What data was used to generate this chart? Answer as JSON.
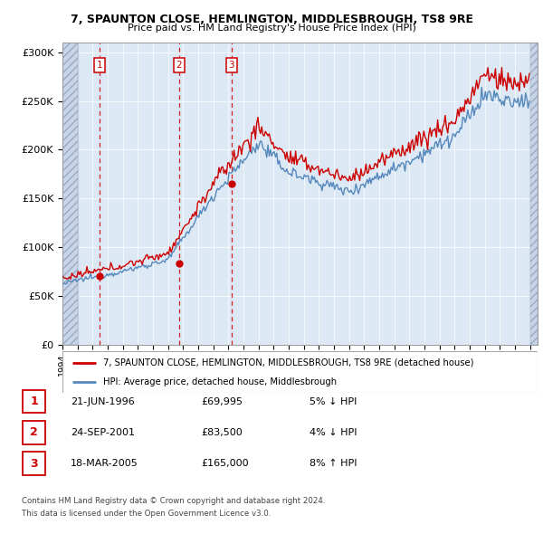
{
  "title1": "7, SPAUNTON CLOSE, HEMLINGTON, MIDDLESBROUGH, TS8 9RE",
  "title2": "Price paid vs. HM Land Registry's House Price Index (HPI)",
  "ylim": [
    0,
    310000
  ],
  "yticks": [
    0,
    50000,
    100000,
    150000,
    200000,
    250000,
    300000
  ],
  "ytick_labels": [
    "£0",
    "£50K",
    "£100K",
    "£150K",
    "£200K",
    "£250K",
    "£300K"
  ],
  "sale_dates_float": [
    1996.46,
    2001.72,
    2005.21
  ],
  "sale_prices": [
    69995,
    83500,
    165000
  ],
  "sale_labels": [
    "1",
    "2",
    "3"
  ],
  "sale_table": [
    [
      "1",
      "21-JUN-1996",
      "£69,995",
      "5% ↓ HPI"
    ],
    [
      "2",
      "24-SEP-2001",
      "£83,500",
      "4% ↓ HPI"
    ],
    [
      "3",
      "18-MAR-2005",
      "£165,000",
      "8% ↑ HPI"
    ]
  ],
  "legend_line1": "7, SPAUNTON CLOSE, HEMLINGTON, MIDDLESBROUGH, TS8 9RE (detached house)",
  "legend_line2": "HPI: Average price, detached house, Middlesbrough",
  "footer1": "Contains HM Land Registry data © Crown copyright and database right 2024.",
  "footer2": "This data is licensed under the Open Government Licence v3.0.",
  "hpi_color": "#5588bb",
  "price_color": "#cc0000",
  "chart_bg": "#dde8f5",
  "hatch_end": 1995.0,
  "xmin": 1994.0,
  "xmax": 2025.5
}
